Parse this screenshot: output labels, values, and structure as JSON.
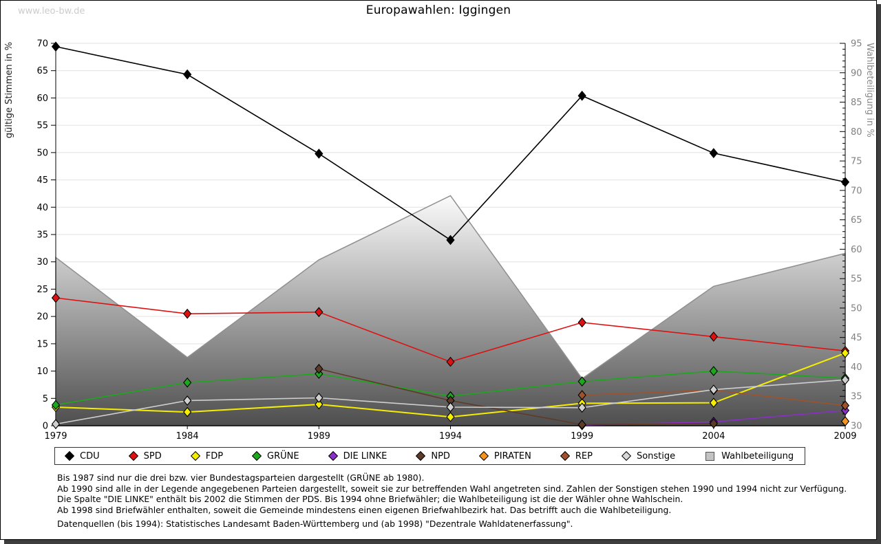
{
  "watermark": "www.leo-bw.de",
  "title": "Europawahlen: Iggingen",
  "chart_data": {
    "type": "line",
    "x": [
      1979,
      1984,
      1989,
      1994,
      1999,
      2004,
      2009
    ],
    "left_axis": {
      "label": "gültige Stimmen in %",
      "min": 0,
      "max": 70,
      "step": 5
    },
    "right_axis": {
      "label": "Wahlbeteiligung in %",
      "min": 30,
      "max": 95,
      "step": 5
    },
    "grid": true,
    "area_series": {
      "name": "Wahlbeteiligung",
      "axis": "right",
      "stroke": "#8f8f8f",
      "fill_top": "#fbfbfb",
      "fill_bottom": "#4e4e4e",
      "points": [
        [
          1979,
          58.6
        ],
        [
          1984,
          41.6
        ],
        [
          1989,
          58.2
        ],
        [
          1994,
          69.1
        ],
        [
          1999,
          38.0
        ],
        [
          2004,
          53.7
        ],
        [
          2009,
          59.3
        ]
      ]
    },
    "series": [
      {
        "name": "CDU",
        "color": "#000000",
        "axis": "left",
        "points": [
          [
            1979,
            69.4
          ],
          [
            1984,
            64.3
          ],
          [
            1989,
            49.8
          ],
          [
            1994,
            34.0
          ],
          [
            1999,
            60.4
          ],
          [
            2004,
            49.9
          ],
          [
            2009,
            44.6
          ]
        ]
      },
      {
        "name": "SPD",
        "color": "#dd1111",
        "axis": "left",
        "points": [
          [
            1979,
            23.4
          ],
          [
            1984,
            20.5
          ],
          [
            1989,
            20.8
          ],
          [
            1994,
            11.7
          ],
          [
            1999,
            18.9
          ],
          [
            2004,
            16.3
          ],
          [
            2009,
            13.7
          ]
        ]
      },
      {
        "name": "FDP",
        "color": "#f5ee00",
        "axis": "left",
        "points": [
          [
            1979,
            3.4
          ],
          [
            1984,
            2.5
          ],
          [
            1989,
            3.9
          ],
          [
            1994,
            1.6
          ],
          [
            1999,
            4.1
          ],
          [
            2004,
            4.2
          ],
          [
            2009,
            13.3
          ]
        ]
      },
      {
        "name": "GRÜNE",
        "color": "#1ca81c",
        "axis": "left",
        "points": [
          [
            1979,
            3.8
          ],
          [
            1984,
            7.9
          ],
          [
            1989,
            9.5
          ],
          [
            1994,
            5.4
          ],
          [
            1999,
            8.1
          ],
          [
            2004,
            10.0
          ],
          [
            2009,
            8.7
          ]
        ]
      },
      {
        "name": "DIE LINKE",
        "color": "#8a2fc8",
        "axis": "left",
        "points": [
          [
            1999,
            0.1
          ],
          [
            2004,
            0.7
          ],
          [
            2009,
            2.8
          ]
        ]
      },
      {
        "name": "NPD",
        "color": "#5d3b28",
        "axis": "left",
        "points": [
          [
            1989,
            10.4
          ],
          [
            1994,
            4.6
          ],
          [
            1999,
            0.2
          ],
          [
            2004,
            0.4
          ]
        ]
      },
      {
        "name": "PIRATEN",
        "color": "#f7941d",
        "axis": "left",
        "points": [
          [
            2009,
            0.8
          ]
        ]
      },
      {
        "name": "REP",
        "color": "#a0522d",
        "axis": "left",
        "points": [
          [
            1999,
            5.6
          ],
          [
            2004,
            6.5
          ],
          [
            2009,
            3.7
          ]
        ]
      },
      {
        "name": "Sonstige",
        "color": "#cfcfcf",
        "axis": "left",
        "points": [
          [
            1979,
            0.3
          ],
          [
            1984,
            4.6
          ],
          [
            1989,
            5.1
          ],
          [
            1994,
            3.4
          ],
          [
            1999,
            3.3
          ],
          [
            2004,
            6.6
          ],
          [
            2009,
            8.4
          ]
        ]
      }
    ]
  },
  "legend": [
    {
      "label": "CDU",
      "marker": "diamond",
      "color": "#000000"
    },
    {
      "label": "SPD",
      "marker": "diamond",
      "color": "#dd1111"
    },
    {
      "label": "FDP",
      "marker": "diamond",
      "color": "#f5ee00"
    },
    {
      "label": "GRÜNE",
      "marker": "diamond",
      "color": "#1ca81c"
    },
    {
      "label": "DIE LINKE",
      "marker": "diamond",
      "color": "#8a2fc8"
    },
    {
      "label": "NPD",
      "marker": "diamond",
      "color": "#5d3b28"
    },
    {
      "label": "PIRATEN",
      "marker": "diamond",
      "color": "#f7941d"
    },
    {
      "label": "REP",
      "marker": "diamond",
      "color": "#a0522d"
    },
    {
      "label": "Sonstige",
      "marker": "diamond",
      "color": "#d8d8d8"
    },
    {
      "label": "Wahlbeteiligung",
      "marker": "square",
      "color": "#c3c3c3"
    }
  ],
  "footnotes": [
    "Bis 1987 sind nur die drei bzw. vier Bundestagsparteien dargestellt (GRÜNE ab 1980).",
    "Ab 1990 sind alle in der Legende angegebenen Parteien dargestellt, soweit sie zur betreffenden Wahl angetreten sind. Zahlen der Sonstigen stehen 1990 und 1994 nicht zur Verfügung.",
    "Die Spalte \"DIE LINKE\" enthält bis 2002 die Stimmen der PDS. Bis 1994 ohne Briefwähler; die Wahlbeteiligung ist die der Wähler ohne Wahlschein.",
    "Ab 1998 sind Briefwähler enthalten, soweit die Gemeinde mindestens einen eigenen Briefwahlbezirk hat. Das betrifft auch die Wahlbeteiligung."
  ],
  "source_line": "Datenquellen (bis 1994): Statistisches Landesamt Baden-Württemberg und (ab 1998) \"Dezentrale Wahldatenerfassung\"."
}
